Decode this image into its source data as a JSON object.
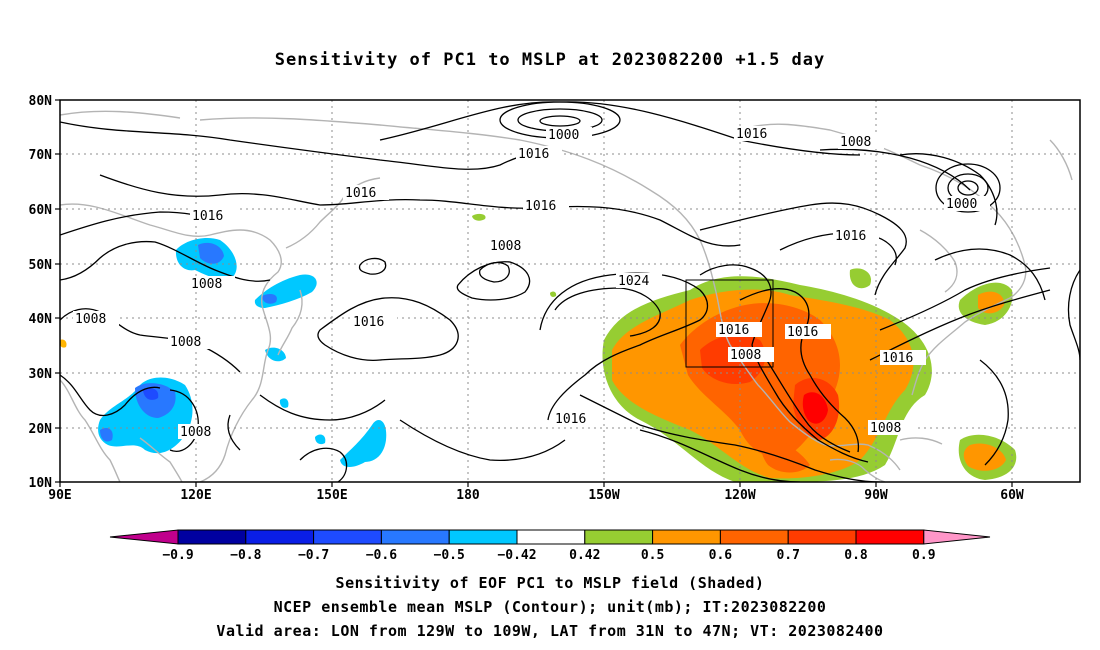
{
  "title": "Sensitivity of PC1 to MSLP at 2023082200 +1.5 day",
  "axes": {
    "lat_labels": [
      "80N",
      "70N",
      "60N",
      "50N",
      "40N",
      "30N",
      "20N",
      "10N"
    ],
    "lon_labels": [
      "90E",
      "120E",
      "150E",
      "180",
      "150W",
      "120W",
      "90W",
      "60W"
    ]
  },
  "contours": {
    "c1000a": "1000",
    "c1000b": "1000",
    "c1016a": "1016",
    "c1016b": "1016",
    "c1016c": "1016",
    "c1016d": "1016",
    "c1016e": "1016",
    "c1016f": "1016",
    "c1016g": "1016",
    "c1016h": "1016",
    "c1016i": "1016",
    "c1016j": "1016",
    "c1016k": "1016",
    "c1008a": "1008",
    "c1008b": "1008",
    "c1008c": "1008",
    "c1008d": "1008",
    "c1008e": "1008",
    "c1008f": "1008",
    "c1008g": "1008",
    "c1008h": "1008",
    "c1024": "1024"
  },
  "colorbar": {
    "labels": [
      "-0.9",
      "-0.8",
      "-0.7",
      "-0.6",
      "-0.5",
      "-0.42",
      "0.42",
      "0.5",
      "0.6",
      "0.7",
      "0.8",
      "0.9"
    ],
    "colors": [
      "#0000a0",
      "#0a1ee6",
      "#1e4bff",
      "#2878ff",
      "#00c8ff",
      "#ffffff",
      "#96cd32",
      "#ff9600",
      "#ff6400",
      "#ff3c00",
      "#ff0000"
    ],
    "left_arrow_color": "#c0008c",
    "right_arrow_color": "#ff96c8"
  },
  "captions": {
    "line1": "Sensitivity of EOF PC1 to MSLP field (Shaded)",
    "line2": "NCEP ensemble mean MSLP (Contour); unit(mb); IT:2023082200",
    "line3": "Valid area: LON from 129W to 109W, LAT from 31N to 47N; VT: 2023082400"
  }
}
